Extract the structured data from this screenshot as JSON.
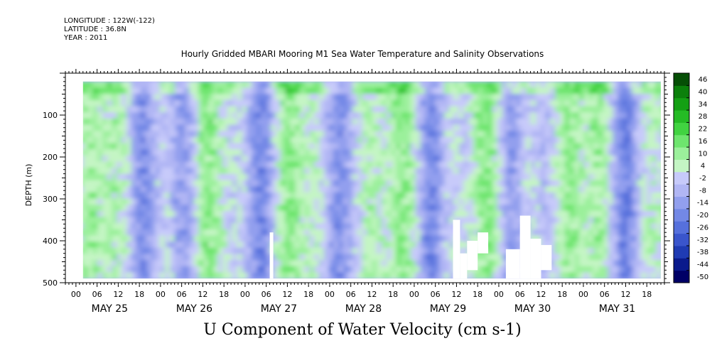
{
  "meta": {
    "longitude": "LONGITUDE : 122W(-122)",
    "latitude": "LATITUDE : 36.8N",
    "year": "YEAR : 2011"
  },
  "subtitle": "Hourly Gridded MBARI Mooring M1 Sea Water Temperature and Salinity Observations",
  "chart_data": {
    "type": "heatmap",
    "title": "U Component of Water Velocity (cm s-1)",
    "ylabel": "DEPTH (m)",
    "ylim": [
      500,
      0
    ],
    "y_ticks": [
      100,
      200,
      300,
      400,
      500
    ],
    "x_hour_ticks": [
      "00",
      "06",
      "12",
      "18",
      "00",
      "06",
      "12",
      "18",
      "00",
      "06",
      "12",
      "18",
      "00",
      "06",
      "12",
      "18",
      "00",
      "06",
      "12",
      "18",
      "00",
      "06",
      "12",
      "18",
      "00",
      "06",
      "12",
      "18"
    ],
    "x_day_labels": [
      "MAY 25",
      "MAY 26",
      "MAY 27",
      "MAY 28",
      "MAY 29",
      "MAY 30",
      "MAY 31"
    ],
    "time_range": [
      "2011-05-24T21:00",
      "2011-05-31T23:00"
    ],
    "data_time_range": [
      "2011-05-25T02:00",
      "2011-05-31T22:00"
    ],
    "data_depth_range": [
      20,
      490
    ],
    "colorbar": {
      "levels": [
        -50,
        -44,
        -38,
        -32,
        -26,
        -20,
        -14,
        -8,
        -2,
        4,
        10,
        16,
        22,
        28,
        34,
        40,
        46
      ],
      "labels": [
        "46",
        "40",
        "34",
        "28",
        "22",
        "16",
        "10",
        "4",
        "-2",
        "-8",
        "-14",
        "-20",
        "-26",
        "-32",
        "-38",
        "-44",
        "-50"
      ],
      "colors": [
        "#000066",
        "#0a1a8c",
        "#1f3bb3",
        "#3a55cc",
        "#5670dc",
        "#7388e6",
        "#929fee",
        "#b1b6f4",
        "#c7cafa",
        "#c4f5c4",
        "#9bf09b",
        "#6ee56e",
        "#41d341",
        "#25bb25",
        "#14a014",
        "#0b800b",
        "#064f06"
      ]
    },
    "missing_regions": [
      {
        "t_start": "2011-05-27T07:00",
        "t_end": "2011-05-27T08:00",
        "depth": [
          380,
          490
        ]
      },
      {
        "t_start": "2011-05-29T11:00",
        "t_end": "2011-05-29T13:00",
        "depth": [
          350,
          490
        ]
      },
      {
        "t_start": "2011-05-29T13:00",
        "t_end": "2011-05-29T15:00",
        "depth": [
          430,
          490
        ]
      },
      {
        "t_start": "2011-05-29T15:00",
        "t_end": "2011-05-29T18:00",
        "depth": [
          400,
          470
        ]
      },
      {
        "t_start": "2011-05-29T18:00",
        "t_end": "2011-05-29T21:00",
        "depth": [
          380,
          430
        ]
      },
      {
        "t_start": "2011-05-30T02:00",
        "t_end": "2011-05-30T06:00",
        "depth": [
          420,
          490
        ]
      },
      {
        "t_start": "2011-05-30T06:00",
        "t_end": "2011-05-30T09:00",
        "depth": [
          340,
          490
        ]
      },
      {
        "t_start": "2011-05-30T09:00",
        "t_end": "2011-05-30T12:00",
        "depth": [
          395,
          490
        ]
      },
      {
        "t_start": "2011-05-30T12:00",
        "t_end": "2011-05-30T15:00",
        "depth": [
          410,
          470
        ]
      }
    ]
  }
}
